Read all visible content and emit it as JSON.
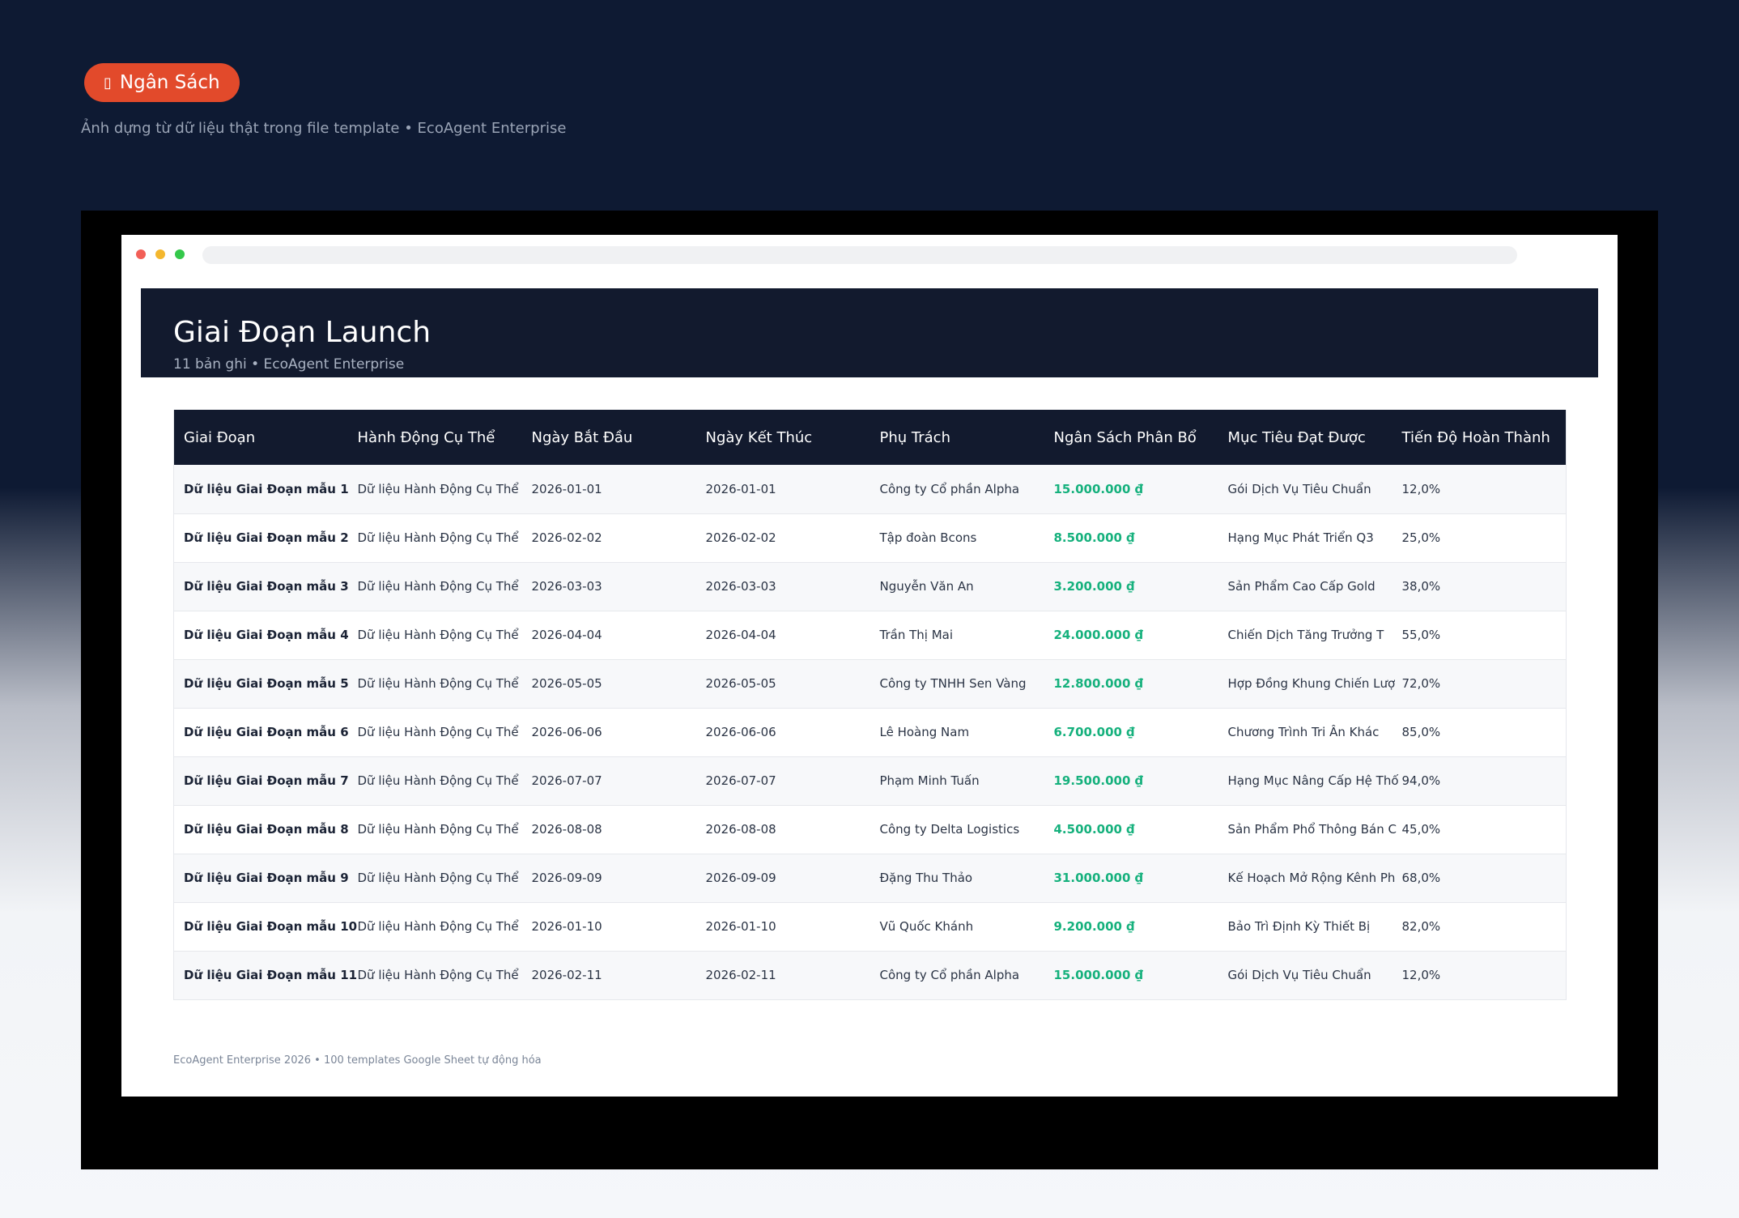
{
  "badge": {
    "icon": "▯",
    "label": "Ngân Sách"
  },
  "hero_subtitle": "Ảnh dựng từ dữ liệu thật trong file template • EcoAgent Enterprise",
  "sheet": {
    "title": "Giai Đoạn Launch",
    "subtitle": "11 bản ghi • EcoAgent Enterprise",
    "columns": [
      "Giai Đoạn",
      "Hành Động Cụ Thể",
      "Ngày Bắt Đầu",
      "Ngày Kết Thúc",
      "Phụ Trách",
      "Ngân Sách Phân Bổ",
      "Mục Tiêu Đạt Được",
      "Tiến Độ Hoàn Thành"
    ],
    "rows": [
      [
        "Dữ liệu Giai Đoạn mẫu 1",
        "Dữ liệu Hành Động Cụ Thể",
        "2026-01-01",
        "2026-01-01",
        "Công ty Cổ phần Alpha",
        "15.000.000 ₫",
        "Gói Dịch Vụ Tiêu Chuẩn",
        "12,0%"
      ],
      [
        "Dữ liệu Giai Đoạn mẫu 2",
        "Dữ liệu Hành Động Cụ Thể",
        "2026-02-02",
        "2026-02-02",
        "Tập đoàn Bcons",
        "8.500.000 ₫",
        "Hạng Mục Phát Triển Q3",
        "25,0%"
      ],
      [
        "Dữ liệu Giai Đoạn mẫu 3",
        "Dữ liệu Hành Động Cụ Thể",
        "2026-03-03",
        "2026-03-03",
        "Nguyễn Văn An",
        "3.200.000 ₫",
        "Sản Phẩm Cao Cấp Gold",
        "38,0%"
      ],
      [
        "Dữ liệu Giai Đoạn mẫu 4",
        "Dữ liệu Hành Động Cụ Thể",
        "2026-04-04",
        "2026-04-04",
        "Trần Thị Mai",
        "24.000.000 ₫",
        "Chiến Dịch Tăng Trưởng T",
        "55,0%"
      ],
      [
        "Dữ liệu Giai Đoạn mẫu 5",
        "Dữ liệu Hành Động Cụ Thể",
        "2026-05-05",
        "2026-05-05",
        "Công ty TNHH Sen Vàng",
        "12.800.000 ₫",
        "Hợp Đồng Khung Chiến Lượ",
        "72,0%"
      ],
      [
        "Dữ liệu Giai Đoạn mẫu 6",
        "Dữ liệu Hành Động Cụ Thể",
        "2026-06-06",
        "2026-06-06",
        "Lê Hoàng Nam",
        "6.700.000 ₫",
        "Chương Trình Tri Ân Khác",
        "85,0%"
      ],
      [
        "Dữ liệu Giai Đoạn mẫu 7",
        "Dữ liệu Hành Động Cụ Thể",
        "2026-07-07",
        "2026-07-07",
        "Phạm Minh Tuấn",
        "19.500.000 ₫",
        "Hạng Mục Nâng Cấp Hệ Thố",
        "94,0%"
      ],
      [
        "Dữ liệu Giai Đoạn mẫu 8",
        "Dữ liệu Hành Động Cụ Thể",
        "2026-08-08",
        "2026-08-08",
        "Công ty Delta Logistics",
        "4.500.000 ₫",
        "Sản Phẩm Phổ Thông Bán C",
        "45,0%"
      ],
      [
        "Dữ liệu Giai Đoạn mẫu 9",
        "Dữ liệu Hành Động Cụ Thể",
        "2026-09-09",
        "2026-09-09",
        "Đặng Thu Thảo",
        "31.000.000 ₫",
        "Kế Hoạch Mở Rộng Kênh Ph",
        "68,0%"
      ],
      [
        "Dữ liệu Giai Đoạn mẫu 10",
        "Dữ liệu Hành Động Cụ Thể",
        "2026-01-10",
        "2026-01-10",
        "Vũ Quốc Khánh",
        "9.200.000 ₫",
        "Bảo Trì Định Kỳ Thiết Bị",
        "82,0%"
      ],
      [
        "Dữ liệu Giai Đoạn mẫu 11",
        "Dữ liệu Hành Động Cụ Thể",
        "2026-02-11",
        "2026-02-11",
        "Công ty Cổ phần Alpha",
        "15.000.000 ₫",
        "Gói Dịch Vụ Tiêu Chuẩn",
        "12,0%"
      ]
    ],
    "footer": "EcoAgent Enterprise 2026 • 100 templates Google Sheet tự động hóa"
  },
  "colors": {
    "accent": "#e24a2b",
    "money": "#16b17d",
    "header_bg": "#121a2e"
  }
}
